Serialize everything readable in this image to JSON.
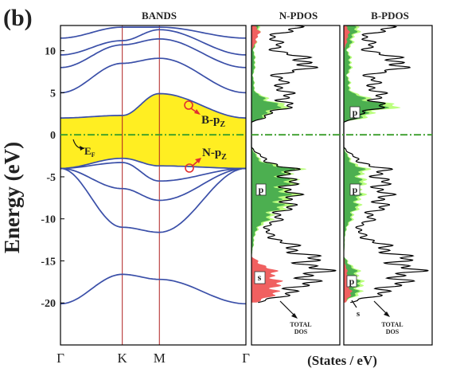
{
  "figure_label": "(b)",
  "chart_data": [
    {
      "type": "line",
      "title": "BANDS",
      "ylabel": "Energy (eV)",
      "ylim": [
        -25,
        13
      ],
      "yticks": [
        10,
        5,
        0,
        -5,
        -10,
        -15,
        -20
      ],
      "xticks": [
        "Γ",
        "K",
        "M",
        "Γ"
      ],
      "x": [
        0,
        1,
        1.6,
        3
      ],
      "fermi_level": 0,
      "gap_fill_color": "#ffee22",
      "band_color": "#3a4fa8",
      "fermi_color": "#3a9e2a",
      "symmetry_line_color": "#b02020",
      "series": [
        {
          "values": [
            -20.1,
            -16.6,
            -17.2,
            -20.1
          ]
        },
        {
          "values": [
            -4.0,
            -11.0,
            -11.6,
            -4.0
          ]
        },
        {
          "values": [
            -4.0,
            -6.4,
            -7.8,
            -4.0
          ]
        },
        {
          "values": [
            -4.0,
            -3.3,
            -5.5,
            -4.0
          ]
        },
        {
          "values": [
            -4.0,
            -2.8,
            -3.7,
            -4.0
          ]
        },
        {
          "values": [
            2.0,
            2.3,
            4.9,
            2.0
          ]
        },
        {
          "values": [
            5.0,
            8.5,
            9.1,
            5.0
          ]
        },
        {
          "values": [
            8.0,
            10.7,
            11.4,
            8.0
          ]
        },
        {
          "values": [
            9.5,
            11.2,
            12.5,
            9.5
          ]
        },
        {
          "values": [
            11.5,
            12.8,
            12.8,
            11.5
          ]
        }
      ],
      "annotations": {
        "ef": "E",
        "ef_sub": "F",
        "bpz": "B-p",
        "bpz_sub": "Z",
        "npz": "N-p",
        "npz_sub": "Z"
      }
    },
    {
      "type": "area",
      "title": "N-PDOS",
      "orientation": "horizontal",
      "energy": [
        -20.0,
        -18.6,
        -16.4,
        -14.5,
        -11.5,
        -8.0,
        -4.0,
        -3.0,
        -1.5,
        1.5,
        2.2,
        3.5,
        5.0,
        7.0,
        8.5,
        10.0,
        12.0,
        13.0
      ],
      "total": [
        0.1,
        0.65,
        0.98,
        0.85,
        0.2,
        0.6,
        0.55,
        0.2,
        0.0,
        0.0,
        0.22,
        0.55,
        0.5,
        0.4,
        0.95,
        0.4,
        0.35,
        0.8
      ],
      "p": [
        0.0,
        0.15,
        0.1,
        0.0,
        0.05,
        0.45,
        0.5,
        0.1,
        0.0,
        0.0,
        0.18,
        0.4,
        0.05,
        0.02,
        0.05,
        0.03,
        0.08,
        0.1
      ],
      "s": [
        0.08,
        0.4,
        0.35,
        0.0,
        0.0,
        0.0,
        0.0,
        0.0,
        0.0,
        0.0,
        0.0,
        0.0,
        0.0,
        0.0,
        0.0,
        0.0,
        0.12,
        0.06
      ],
      "labels": {
        "p_lower": "p",
        "s": "s",
        "total": "TOTAL",
        "total2": "DOS"
      }
    },
    {
      "type": "area",
      "title": "B-PDOS",
      "orientation": "horizontal",
      "energy": [
        -20.0,
        -18.6,
        -16.4,
        -14.5,
        -11.5,
        -8.0,
        -4.0,
        -3.0,
        -1.5,
        1.5,
        2.2,
        3.5,
        5.0,
        7.0,
        8.5,
        10.0,
        12.0,
        13.0
      ],
      "total": [
        0.1,
        0.65,
        0.98,
        0.85,
        0.2,
        0.6,
        0.55,
        0.2,
        0.0,
        0.0,
        0.22,
        0.55,
        0.5,
        0.4,
        0.95,
        0.4,
        0.35,
        0.8
      ],
      "p": [
        0.0,
        0.22,
        0.18,
        0.0,
        0.02,
        0.2,
        0.25,
        0.08,
        0.0,
        0.0,
        0.3,
        0.6,
        0.1,
        0.05,
        0.1,
        0.05,
        0.15,
        0.18
      ],
      "s": [
        0.03,
        0.12,
        0.05,
        0.0,
        0.0,
        0.0,
        0.0,
        0.0,
        0.0,
        0.0,
        0.0,
        0.0,
        0.0,
        0.0,
        0.0,
        0.0,
        0.08,
        0.04
      ],
      "labels": {
        "p_upper": "p",
        "p_lower": "p",
        "s": "s",
        "total": "TOTAL",
        "total2": "DOS"
      }
    }
  ],
  "dos_xlabel": "(States / eV)",
  "colors": {
    "p": "#4caf50",
    "p_light": "#b4ff70",
    "s": "#f06060",
    "total": "#000000"
  }
}
